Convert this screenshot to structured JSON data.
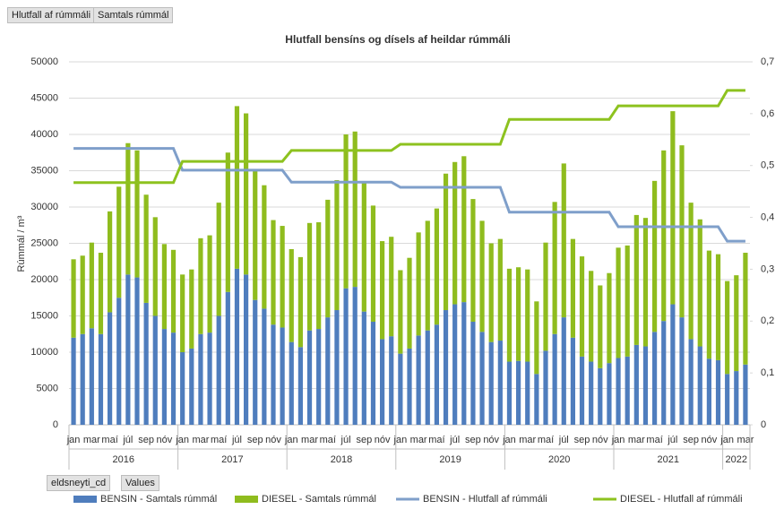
{
  "buttons_top": [
    "Hlutfall af rúmmáli",
    "Samtals rúmmál"
  ],
  "buttons_bottom": [
    "eldsneyti_cd",
    "Values"
  ],
  "chart_data": {
    "type": "combo",
    "title": "Hlutfall bensíns og dísels af heildar rúmmáli",
    "y_label": "Rúmmál / m³",
    "categories": [
      "jan",
      null,
      "mar",
      null,
      "maí",
      null,
      "júl",
      null,
      "sep",
      null,
      "nóv",
      null,
      "jan",
      null,
      "mar",
      null,
      "maí",
      null,
      "júl",
      null,
      "sep",
      null,
      "nóv",
      null,
      "jan",
      null,
      "mar",
      null,
      "maí",
      null,
      "júl",
      null,
      "sep",
      null,
      "nóv",
      null,
      "jan",
      null,
      "mar",
      null,
      "maí",
      null,
      "júl",
      null,
      "sep",
      null,
      "nóv",
      null,
      "jan",
      null,
      "mar",
      null,
      "maí",
      null,
      "júl",
      null,
      "sep",
      null,
      "nóv",
      null,
      "jan",
      null,
      "mar",
      null,
      "maí",
      null,
      "júl",
      null,
      "sep",
      null,
      "nóv",
      null,
      "jan",
      null,
      "mar"
    ],
    "years": [
      "2016",
      "2017",
      "2018",
      "2019",
      "2020",
      "2021",
      "2022"
    ],
    "ylim": [
      0,
      50000
    ],
    "yticks": [
      0,
      5000,
      10000,
      15000,
      20000,
      25000,
      30000,
      35000,
      40000,
      45000,
      50000
    ],
    "y2lim": [
      0,
      0.7
    ],
    "y2ticks": [
      0,
      {
        "value": 0.1,
        "label": "0,1"
      },
      {
        "value": 0.2,
        "label": "0,2"
      },
      {
        "value": 0.3,
        "label": "0,3"
      },
      {
        "value": 0.4,
        "label": "0,4"
      },
      {
        "value": 0.5,
        "label": "0,5"
      },
      {
        "value": 0.6,
        "label": "0,6"
      },
      {
        "value": 0.7,
        "label": "0,7"
      }
    ],
    "grid": true,
    "legend": "bottom",
    "series": [
      {
        "name": "BENSIN - Samtals rúmmál",
        "type": "bar",
        "stacked": true,
        "color": "#4f7dbd",
        "values": [
          12000,
          12500,
          13300,
          12500,
          15500,
          17500,
          20700,
          20300,
          16800,
          15000,
          13200,
          12700,
          10000,
          10500,
          12500,
          12700,
          15000,
          18300,
          21500,
          20700,
          17200,
          16000,
          13800,
          13400,
          11400,
          10700,
          13000,
          13200,
          14800,
          15800,
          18800,
          19000,
          15600,
          14200,
          11800,
          12200,
          9800,
          10500,
          12300,
          13000,
          13800,
          15800,
          16600,
          16900,
          14200,
          12800,
          11400,
          11600,
          8700,
          8800,
          8700,
          7000,
          10200,
          12500,
          14800,
          12000,
          9400,
          8700,
          7800,
          8500,
          9200,
          9400,
          11000,
          10800,
          12800,
          14300,
          16600,
          14800,
          11800,
          10800,
          9100,
          8900,
          7000,
          7400,
          8300
        ]
      },
      {
        "name": "DIESEL - Samtals rúmmál",
        "type": "bar",
        "stacked": true,
        "color": "#8fbc1e",
        "values": [
          10800,
          10800,
          11800,
          11200,
          13900,
          15300,
          18100,
          17500,
          14900,
          13600,
          11700,
          11400,
          10700,
          10900,
          13200,
          13400,
          15600,
          19200,
          22400,
          22200,
          18000,
          17000,
          14400,
          14000,
          12800,
          12400,
          14800,
          14700,
          16200,
          17900,
          21200,
          21400,
          17900,
          16000,
          13500,
          13700,
          11500,
          12500,
          14200,
          15100,
          16000,
          18800,
          19600,
          20100,
          16900,
          15300,
          13600,
          14000,
          12800,
          12900,
          12700,
          10000,
          14900,
          18200,
          21200,
          13600,
          13800,
          12500,
          11400,
          12400,
          15200,
          15300,
          17900,
          17700,
          20800,
          23500,
          26600,
          23700,
          18800,
          17500,
          14900,
          14600,
          12800,
          13200,
          15400
        ]
      },
      {
        "name": "BENSIN - Hlutfall af rúmmáli",
        "type": "line",
        "axis": "y2",
        "color": "#7f9fca",
        "values": [
          0.533,
          0.533,
          0.533,
          0.533,
          0.533,
          0.533,
          0.533,
          0.533,
          0.533,
          0.533,
          0.533,
          0.533,
          0.491,
          0.491,
          0.491,
          0.491,
          0.491,
          0.491,
          0.491,
          0.491,
          0.491,
          0.491,
          0.491,
          0.491,
          0.468,
          0.468,
          0.468,
          0.468,
          0.468,
          0.468,
          0.468,
          0.468,
          0.468,
          0.468,
          0.468,
          0.468,
          0.458,
          0.458,
          0.458,
          0.458,
          0.458,
          0.458,
          0.458,
          0.458,
          0.458,
          0.458,
          0.458,
          0.458,
          0.41,
          0.41,
          0.41,
          0.41,
          0.41,
          0.41,
          0.41,
          0.41,
          0.41,
          0.41,
          0.41,
          0.41,
          0.382,
          0.382,
          0.382,
          0.382,
          0.382,
          0.382,
          0.382,
          0.382,
          0.382,
          0.382,
          0.382,
          0.382,
          0.354,
          0.354,
          0.354
        ]
      },
      {
        "name": "DIESEL - Hlutfall af rúmmáli",
        "type": "line",
        "axis": "y2",
        "color": "#8dc21f",
        "values": [
          0.467,
          0.467,
          0.467,
          0.467,
          0.467,
          0.467,
          0.467,
          0.467,
          0.467,
          0.467,
          0.467,
          0.467,
          0.508,
          0.508,
          0.508,
          0.508,
          0.508,
          0.508,
          0.508,
          0.508,
          0.508,
          0.508,
          0.508,
          0.508,
          0.529,
          0.529,
          0.529,
          0.529,
          0.529,
          0.529,
          0.529,
          0.529,
          0.529,
          0.529,
          0.529,
          0.529,
          0.541,
          0.541,
          0.541,
          0.541,
          0.541,
          0.541,
          0.541,
          0.541,
          0.541,
          0.541,
          0.541,
          0.541,
          0.589,
          0.589,
          0.589,
          0.589,
          0.589,
          0.589,
          0.589,
          0.589,
          0.589,
          0.589,
          0.589,
          0.589,
          0.615,
          0.615,
          0.615,
          0.615,
          0.615,
          0.615,
          0.615,
          0.615,
          0.615,
          0.615,
          0.615,
          0.615,
          0.645,
          0.645,
          0.645
        ]
      }
    ]
  }
}
